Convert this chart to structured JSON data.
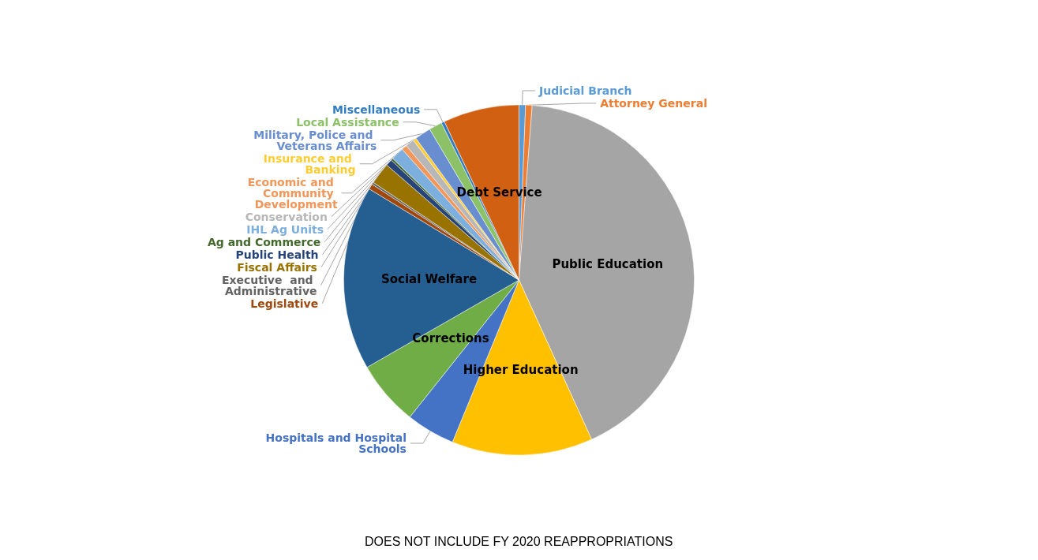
{
  "chart_data": {
    "type": "pie",
    "categories": [
      "Judicial Branch",
      "Attorney General",
      "Public Education",
      "Higher Education",
      "Hospitals and Hospital Schools",
      "Corrections",
      "Social Welfare",
      "Legislative",
      "Executive  and Administrative",
      "Fiscal Affairs",
      "Public Health",
      "Ag and Commerce",
      "IHL Ag Units",
      "Economic and Community Development",
      "Conservation",
      "Insurance and Banking",
      "Military, Police and Veterans Affairs",
      "Local Assistance",
      "Miscellaneous",
      "Debt Service"
    ],
    "values": [
      0.6,
      0.6,
      42,
      13,
      4.5,
      6,
      17,
      0.5,
      0.2,
      2,
      0.6,
      0.2,
      1.2,
      0.5,
      0.8,
      0.3,
      1.5,
      1.2,
      0.3,
      7
    ],
    "colors": [
      "#5b9bd5",
      "#ed7d31",
      "#a5a5a5",
      "#ffc000",
      "#4472c4",
      "#70ad47",
      "#255e91",
      "#9e480e",
      "#636363",
      "#997300",
      "#264478",
      "#43682b",
      "#7cafdd",
      "#f1975a",
      "#b7b7b7",
      "#ffcd33",
      "#698ed0",
      "#8cc168",
      "#327dc2",
      "#d26012"
    ],
    "legend": false,
    "annotations": [
      "DOES NOT INCLUDE FY 2020 REAPPROPRIATIONS"
    ]
  }
}
